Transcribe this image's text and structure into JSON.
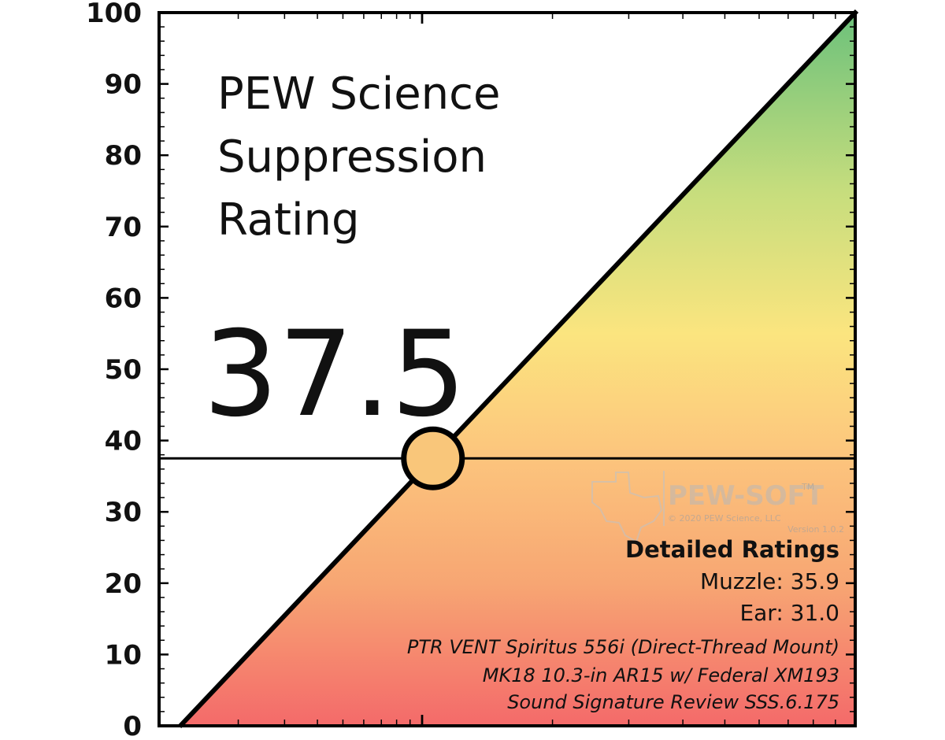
{
  "chart_data": {
    "type": "line",
    "title_lines": [
      "PEW Science",
      "Suppression",
      "Rating"
    ],
    "value_label": "37.5",
    "rating": 37.5,
    "ylim": [
      0,
      100
    ],
    "yticks": [
      "0",
      "10",
      "20",
      "30",
      "40",
      "50",
      "60",
      "70",
      "80",
      "90",
      "100"
    ],
    "xlabel": "",
    "ylabel": "",
    "x": [
      0,
      100
    ],
    "y": [
      0,
      100
    ],
    "grid": false,
    "gradient_colors": [
      "#f46a6a",
      "#f7a673",
      "#fcc57d",
      "#fbe57f",
      "#c6dd7d",
      "#6cc17b"
    ],
    "marker_color": "#f9c67a"
  },
  "details": {
    "heading": "Detailed Ratings",
    "muzzle": "Muzzle: 35.9",
    "ear": "Ear: 31.0"
  },
  "notes": [
    "PTR VENT Spiritus 556i (Direct-Thread Mount)",
    "MK18 10.3-in AR15 w/ Federal XM193",
    "Sound Signature Review SSS.6.175"
  ],
  "watermark": {
    "name": "PEW-SOFT",
    "tm": "TM",
    "copyright": "© 2020 PEW Science, LLC",
    "version": "Version 1.0.2"
  }
}
